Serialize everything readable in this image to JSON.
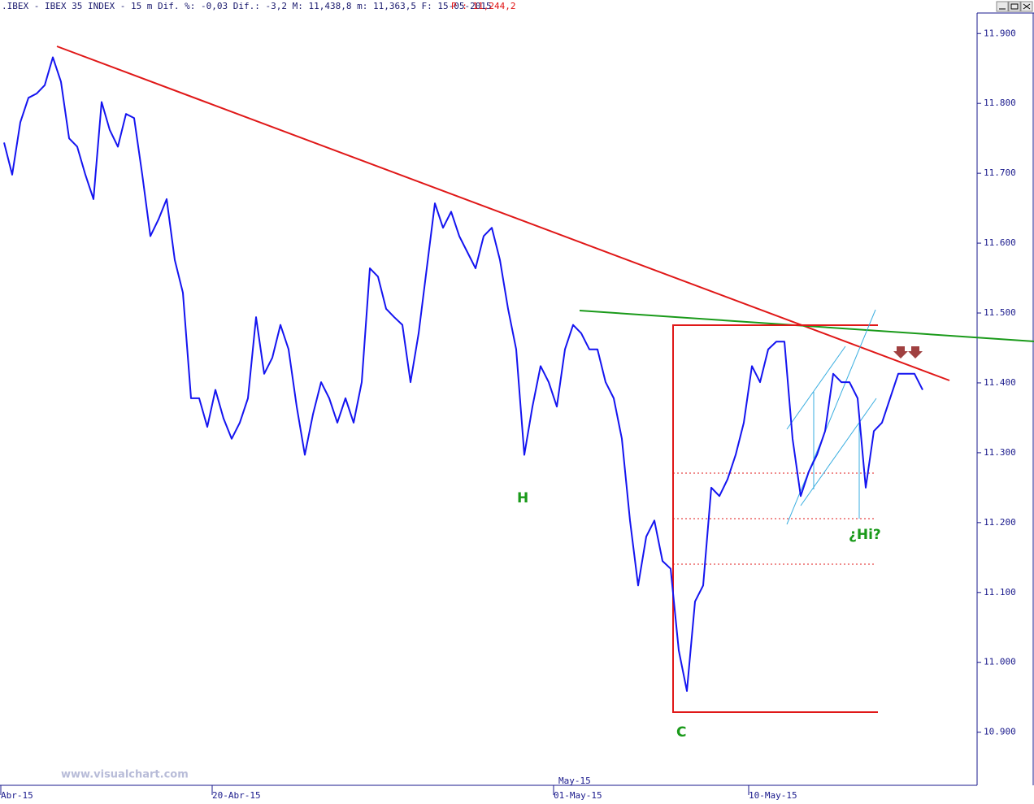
{
  "chart_data": {
    "type": "line",
    "title": ".IBEX - IBEX 35 INDEX -  15 m Dif. %: -0,03 Dif.: -3,2 M: 11,438,8 m: 11,363,5 F: 15-05-2015",
    "subtitle": "P : 11,244,2",
    "month_label": "May-15",
    "watermark": "www.visualchart.com",
    "annotations": [
      "H",
      "C",
      "¿Hi?"
    ],
    "color": "#1414f0",
    "categories": [
      "Abr-15",
      null,
      null,
      null,
      null,
      null,
      null,
      null,
      null,
      null,
      null,
      null,
      null,
      null,
      null,
      null,
      null,
      null,
      null,
      null,
      null,
      null,
      null,
      null,
      null,
      null,
      "20-Abr-15",
      null,
      null,
      null,
      null,
      null,
      null,
      null,
      null,
      null,
      null,
      null,
      null,
      null,
      null,
      null,
      null,
      null,
      null,
      null,
      null,
      null,
      null,
      null,
      null,
      null,
      null,
      null,
      null,
      null,
      null,
      null,
      null,
      null,
      null,
      null,
      null,
      null,
      null,
      null,
      null,
      null,
      "01-May-15",
      null,
      null,
      null,
      null,
      null,
      null,
      null,
      null,
      null,
      null,
      null,
      null,
      null,
      null,
      null,
      null,
      null,
      null,
      null,
      null,
      null,
      null,
      null,
      "10-May-15",
      null,
      null,
      null,
      null,
      null,
      null,
      null,
      null,
      null,
      null,
      null,
      null,
      null,
      null,
      null,
      null,
      null,
      null,
      null,
      null,
      null
    ],
    "values": [
      11744,
      11698,
      11773,
      11808,
      11814,
      11826,
      11866,
      11831,
      11750,
      11738,
      11698,
      11663,
      11802,
      11762,
      11738,
      11785,
      11779,
      11698,
      11610,
      11634,
      11663,
      11576,
      11529,
      11378,
      11378,
      11337,
      11390,
      11349,
      11320,
      11343,
      11378,
      11494,
      11413,
      11436,
      11483,
      11448,
      11366,
      11297,
      11355,
      11401,
      11378,
      11343,
      11378,
      11343,
      11401,
      11564,
      11552,
      11506,
      11494,
      11483,
      11401,
      11471,
      11564,
      11657,
      11622,
      11645,
      11610,
      11587,
      11564,
      11610,
      11622,
      11576,
      11506,
      11448,
      11297,
      11366,
      11424,
      11401,
      11366,
      11448,
      11483,
      11471,
      11448,
      11448,
      11401,
      11378,
      11320,
      11203,
      11110,
      11180,
      11203,
      11145,
      11134,
      11017,
      10959,
      11087,
      11110,
      11250,
      11238,
      11262,
      11297,
      11343,
      11424,
      11401,
      11448,
      11459,
      11459,
      11320,
      11238,
      11273,
      11297,
      11331,
      11413,
      11401,
      11401,
      11378,
      11250,
      11331,
      11343,
      11378,
      11413,
      11413,
      11413,
      11390
    ],
    "ylim": [
      10824,
      11948
    ],
    "yticks": [
      {
        "value": 10900,
        "label": "10.900"
      },
      {
        "value": 11000,
        "label": "11.000"
      },
      {
        "value": 11100,
        "label": "11.100"
      },
      {
        "value": 11200,
        "label": "11.200"
      },
      {
        "value": 11300,
        "label": "11.300"
      },
      {
        "value": 11400,
        "label": "11.400"
      },
      {
        "value": 11500,
        "label": "11.500"
      },
      {
        "value": 11600,
        "label": "11.600"
      },
      {
        "value": 11700,
        "label": "11.700"
      },
      {
        "value": 11800,
        "label": "11.800"
      },
      {
        "value": 11900,
        "label": "11.900"
      }
    ],
    "grid": false
  }
}
